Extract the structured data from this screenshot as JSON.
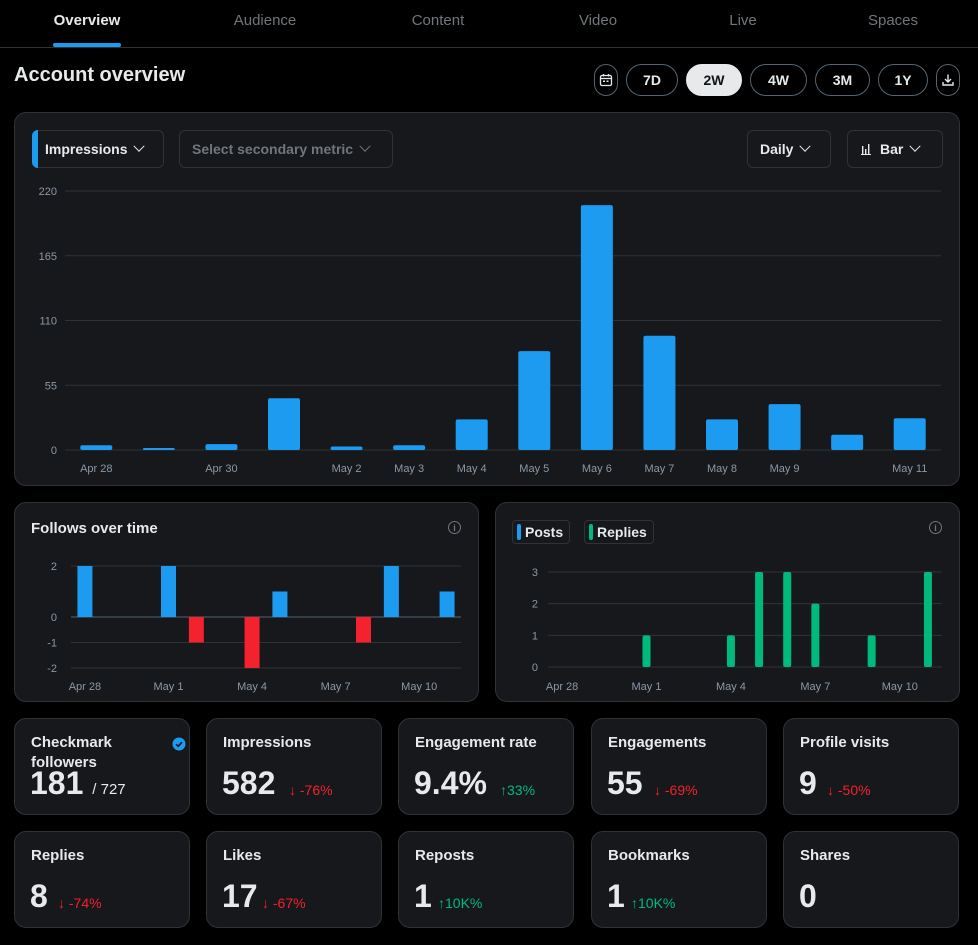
{
  "nav": {
    "tabs": [
      "Overview",
      "Audience",
      "Content",
      "Video",
      "Live",
      "Spaces"
    ],
    "active": "Overview"
  },
  "page_title": "Account overview",
  "ranges": [
    "7D",
    "2W",
    "4W",
    "3M",
    "1Y"
  ],
  "active_range": "2W",
  "icons": {
    "calendar": "calendar-icon",
    "download": "download-icon",
    "info": "info-icon",
    "verified": "verified-badge-icon",
    "chart": "bar-chart-icon"
  },
  "controls": {
    "primary_metric": "Impressions",
    "secondary_metric": "Select secondary metric",
    "granularity": "Daily",
    "chart_type": "Bar"
  },
  "colors": {
    "accent": "#1d9bf0",
    "positive": "#00ba7c",
    "negative": "#f4212e",
    "replies": "#00ba7c"
  },
  "follows_title": "Follows over time",
  "legend": {
    "posts": "Posts",
    "replies": "Replies"
  },
  "stats": [
    {
      "label": "Checkmark followers",
      "value": "181",
      "total": "/ 727",
      "delta": "",
      "dir": ""
    },
    {
      "label": "Impressions",
      "value": "582",
      "delta": "-76%",
      "dir": "down"
    },
    {
      "label": "Engagement rate",
      "value": "9.4%",
      "delta": "33%",
      "dir": "up"
    },
    {
      "label": "Engagements",
      "value": "55",
      "delta": "-69%",
      "dir": "down"
    },
    {
      "label": "Profile visits",
      "value": "9",
      "delta": "-50%",
      "dir": "down"
    },
    {
      "label": "Replies",
      "value": "8",
      "delta": "-74%",
      "dir": "down"
    },
    {
      "label": "Likes",
      "value": "17",
      "delta": "-67%",
      "dir": "down"
    },
    {
      "label": "Reposts",
      "value": "1",
      "delta": "10K%",
      "dir": "up"
    },
    {
      "label": "Bookmarks",
      "value": "1",
      "delta": "10K%",
      "dir": "up"
    },
    {
      "label": "Shares",
      "value": "0",
      "delta": "",
      "dir": ""
    }
  ],
  "chart_data": [
    {
      "type": "bar",
      "categories": [
        "Apr 28",
        "Apr 29",
        "Apr 30",
        "May 1",
        "May 2",
        "May 3",
        "May 4",
        "May 5",
        "May 6",
        "May 7",
        "May 8",
        "May 9",
        "May 10",
        "May 11"
      ],
      "tick_labels": [
        "Apr 28",
        "",
        "Apr 30",
        "",
        "May 2",
        "May 3",
        "May 4",
        "May 5",
        "May 6",
        "May 7",
        "May 8",
        "May 9",
        "",
        "May 11"
      ],
      "values": [
        4,
        1,
        5,
        44,
        3,
        4,
        26,
        84,
        208,
        97,
        26,
        39,
        13,
        27
      ],
      "yticks": [
        0,
        55,
        110,
        165,
        220
      ],
      "ylim": [
        0,
        220
      ],
      "grid": true
    },
    {
      "type": "bar",
      "categories": [
        "Apr 28",
        "Apr 29",
        "Apr 30",
        "May 1",
        "May 2",
        "May 3",
        "May 4",
        "May 5",
        "May 6",
        "May 7",
        "May 8",
        "May 9",
        "May 10",
        "May 11"
      ],
      "tick_labels": [
        "Apr 28",
        "",
        "",
        "May 1",
        "",
        "",
        "May 4",
        "",
        "",
        "May 7",
        "",
        "",
        "May 10",
        ""
      ],
      "values": [
        2,
        0,
        0,
        2,
        -1,
        0,
        -2,
        1,
        0,
        0,
        -1,
        2,
        0,
        1
      ],
      "yticks": [
        -2,
        -1,
        0,
        2
      ],
      "ylim": [
        -2,
        2
      ],
      "grid": true
    },
    {
      "type": "bar",
      "categories": [
        "Apr 28",
        "Apr 29",
        "Apr 30",
        "May 1",
        "May 2",
        "May 3",
        "May 4",
        "May 5",
        "May 6",
        "May 7",
        "May 8",
        "May 9",
        "May 10",
        "May 11"
      ],
      "tick_labels": [
        "Apr 28",
        "",
        "",
        "May 1",
        "",
        "",
        "May 4",
        "",
        "",
        "May 7",
        "",
        "",
        "May 10",
        ""
      ],
      "series": [
        {
          "name": "Posts",
          "values": [
            0,
            0,
            0,
            0,
            0,
            0,
            0,
            0,
            0,
            0,
            0,
            0,
            0,
            0
          ]
        },
        {
          "name": "Replies",
          "values": [
            0,
            0,
            0,
            1,
            0,
            0,
            1,
            3,
            3,
            2,
            0,
            1,
            0,
            3
          ]
        }
      ],
      "yticks": [
        0,
        1,
        2,
        3
      ],
      "ylim": [
        0,
        3
      ],
      "grid": true
    }
  ]
}
